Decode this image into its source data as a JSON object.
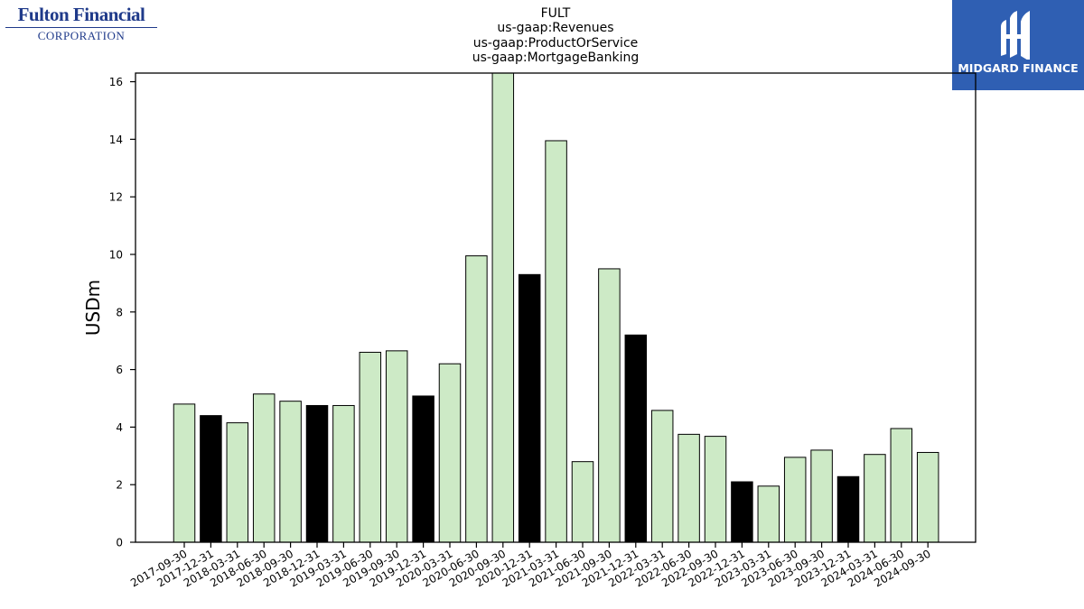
{
  "branding": {
    "company_logo_name": "Fulton Financial",
    "company_logo_sub": "CORPORATION",
    "provider_logo_text": "MIDGARD FINANCE"
  },
  "title_lines": [
    "FULT",
    "us-gaap:Revenues",
    "us-gaap:ProductOrService",
    "us-gaap:MortgageBanking"
  ],
  "colors": {
    "annual_bar": "#000000",
    "quarter_bar": "#cdeac6",
    "bar_edge": "#000000"
  },
  "chart_data": {
    "type": "bar",
    "ylabel": "USDm",
    "ylim": [
      0,
      16.3
    ],
    "yticks": [
      0,
      2,
      4,
      6,
      8,
      10,
      12,
      14,
      16
    ],
    "grid": false,
    "categories": [
      "2017-09-30",
      "2017-12-31",
      "2018-03-31",
      "2018-06-30",
      "2018-09-30",
      "2018-12-31",
      "2019-03-31",
      "2019-06-30",
      "2019-09-30",
      "2019-12-31",
      "2020-03-31",
      "2020-06-30",
      "2020-09-30",
      "2020-12-31",
      "2021-03-31",
      "2021-06-30",
      "2021-09-30",
      "2021-12-31",
      "2022-03-31",
      "2022-06-30",
      "2022-09-30",
      "2022-12-31",
      "2023-03-31",
      "2023-06-30",
      "2023-09-30",
      "2023-12-31",
      "2024-03-31",
      "2024-06-30",
      "2024-09-30"
    ],
    "values": [
      4.8,
      4.4,
      4.15,
      5.15,
      4.9,
      4.75,
      4.75,
      6.6,
      6.65,
      5.08,
      6.2,
      9.95,
      16.5,
      9.3,
      13.95,
      2.8,
      9.5,
      7.2,
      4.58,
      3.75,
      3.68,
      2.1,
      1.95,
      2.95,
      3.2,
      2.28,
      3.05,
      3.95,
      3.12
    ],
    "highlight_year_end": [
      false,
      true,
      false,
      false,
      false,
      true,
      false,
      false,
      false,
      true,
      false,
      false,
      false,
      true,
      false,
      false,
      false,
      true,
      false,
      false,
      false,
      true,
      false,
      false,
      false,
      true,
      false,
      false,
      false
    ]
  }
}
